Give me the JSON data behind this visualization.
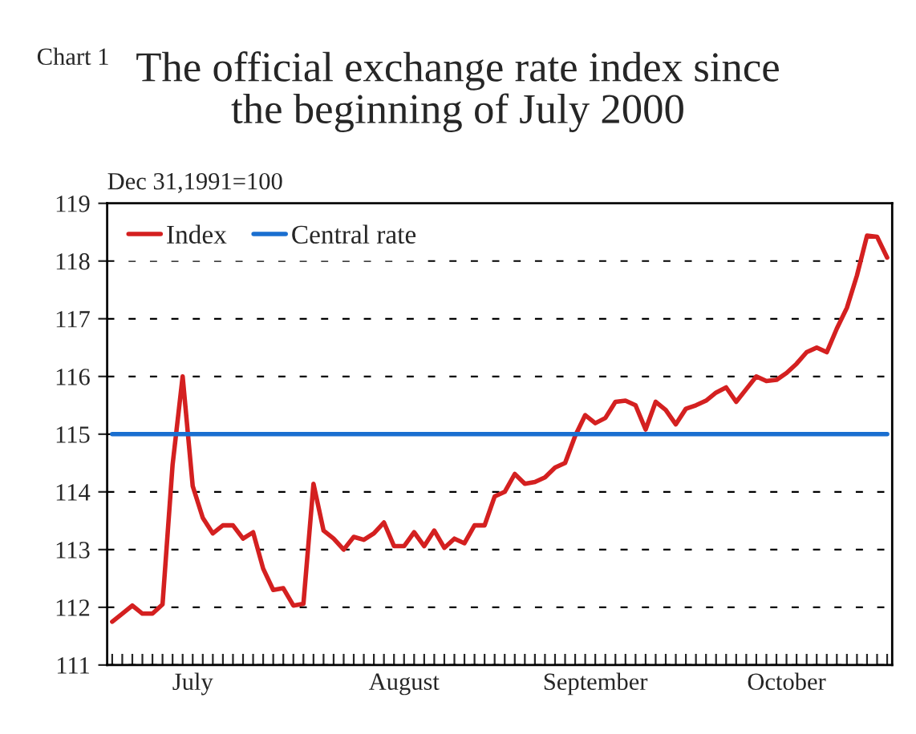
{
  "chart_data": {
    "type": "line",
    "title": "The official exchange rate index since\nthe beginning of July 2000",
    "ylabel": "Dec 31,1991=100",
    "annotations": [
      "Chart 1"
    ],
    "categories": [
      null,
      null,
      null,
      null,
      null,
      null,
      null,
      null,
      "July",
      null,
      null,
      null,
      null,
      null,
      null,
      null,
      null,
      null,
      null,
      null,
      null,
      null,
      null,
      null,
      null,
      null,
      null,
      null,
      null,
      "August",
      null,
      null,
      null,
      null,
      null,
      null,
      null,
      null,
      null,
      null,
      null,
      null,
      null,
      null,
      null,
      null,
      null,
      null,
      "September",
      null,
      null,
      null,
      null,
      null,
      null,
      null,
      null,
      null,
      null,
      null,
      null,
      null,
      null,
      null,
      null,
      null,
      null,
      "October",
      null,
      null,
      null,
      null,
      null,
      null,
      null,
      null,
      null,
      null
    ],
    "series": [
      {
        "name": "Index",
        "color": "#d42020",
        "values": [
          111.75,
          111.89,
          112.03,
          111.89,
          111.89,
          112.05,
          114.47,
          116.0,
          114.1,
          113.55,
          113.28,
          113.42,
          113.42,
          113.19,
          113.3,
          112.67,
          112.3,
          112.33,
          112.03,
          112.06,
          114.14,
          113.33,
          113.19,
          113.0,
          113.22,
          113.17,
          113.28,
          113.47,
          113.06,
          113.06,
          113.3,
          113.06,
          113.33,
          113.03,
          113.19,
          113.11,
          113.42,
          113.42,
          113.92,
          114.0,
          114.31,
          114.14,
          114.17,
          114.25,
          114.42,
          114.5,
          114.97,
          115.33,
          115.19,
          115.28,
          115.56,
          115.58,
          115.5,
          115.08,
          115.56,
          115.42,
          115.17,
          115.44,
          115.5,
          115.58,
          115.72,
          115.81,
          115.56,
          115.78,
          116.0,
          115.92,
          115.94,
          116.06,
          116.22,
          116.42,
          116.5,
          116.42,
          116.83,
          117.19,
          117.75,
          118.44,
          118.42,
          118.06
        ]
      },
      {
        "name": "Central rate",
        "color": "#1a6fd0",
        "values": [
          115,
          115,
          115,
          115,
          115,
          115,
          115,
          115,
          115,
          115,
          115,
          115,
          115,
          115,
          115,
          115,
          115,
          115,
          115,
          115,
          115,
          115,
          115,
          115,
          115,
          115,
          115,
          115,
          115,
          115,
          115,
          115,
          115,
          115,
          115,
          115,
          115,
          115,
          115,
          115,
          115,
          115,
          115,
          115,
          115,
          115,
          115,
          115,
          115,
          115,
          115,
          115,
          115,
          115,
          115,
          115,
          115,
          115,
          115,
          115,
          115,
          115,
          115,
          115,
          115,
          115,
          115,
          115,
          115,
          115,
          115,
          115,
          115,
          115,
          115,
          115,
          115,
          115
        ]
      }
    ],
    "ylim": [
      111,
      119
    ],
    "yticks": [
      111,
      112,
      113,
      114,
      115,
      116,
      117,
      118,
      119
    ],
    "grid": "y",
    "legend": "top left",
    "line_style": "solid",
    "marker": "none"
  }
}
